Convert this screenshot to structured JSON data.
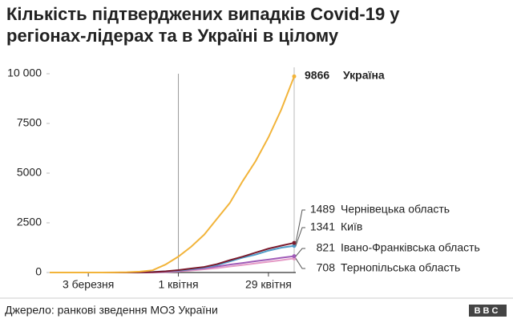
{
  "chart_data": {
    "type": "line",
    "title": "Кількість підтверджених випадків Covid-19 у регіонах-лідерах та в Україні в цілому",
    "source": "Джерело: ранкові зведення МОЗ України",
    "logo": "BBC",
    "x": [
      null,
      null,
      null,
      "3 березня",
      null,
      null,
      null,
      null,
      null,
      null,
      "1 квітня",
      null,
      null,
      null,
      null,
      null,
      null,
      "29 квітня",
      null,
      null
    ],
    "ylim": [
      0,
      10000
    ],
    "yticks": [
      0,
      2500,
      5000,
      7500,
      {
        "value": 10000,
        "label": "10 000"
      }
    ],
    "grid": false,
    "series": [
      {
        "name": "Україна",
        "color": "#f2b43a",
        "values": [
          0,
          0,
          0,
          0,
          1,
          3,
          16,
          47,
          113,
          400,
          800,
          1300,
          1900,
          2700,
          3500,
          4600,
          5600,
          6800,
          8200,
          9866
        ]
      },
      {
        "name": "Чернівецька область",
        "color": "#7b1a2c",
        "values": [
          0,
          0,
          0,
          0,
          0,
          0,
          0,
          5,
          20,
          60,
          120,
          200,
          280,
          420,
          620,
          800,
          1000,
          1200,
          1350,
          1489
        ]
      },
      {
        "name": "Київ",
        "color": "#4f9cc9",
        "values": [
          0,
          0,
          0,
          0,
          0,
          0,
          1,
          10,
          30,
          60,
          100,
          170,
          250,
          370,
          560,
          750,
          900,
          1100,
          1250,
          1341
        ]
      },
      {
        "name": "Івано-Франківська область",
        "color": "#a05cb8",
        "values": [
          0,
          0,
          0,
          0,
          0,
          0,
          0,
          2,
          10,
          40,
          80,
          150,
          210,
          300,
          400,
          480,
          570,
          650,
          740,
          821
        ]
      },
      {
        "name": "Тернопільська область",
        "color": "#e59bc6",
        "values": [
          0,
          0,
          0,
          0,
          0,
          0,
          0,
          1,
          5,
          20,
          50,
          100,
          160,
          220,
          300,
          380,
          460,
          540,
          620,
          708
        ]
      }
    ]
  }
}
